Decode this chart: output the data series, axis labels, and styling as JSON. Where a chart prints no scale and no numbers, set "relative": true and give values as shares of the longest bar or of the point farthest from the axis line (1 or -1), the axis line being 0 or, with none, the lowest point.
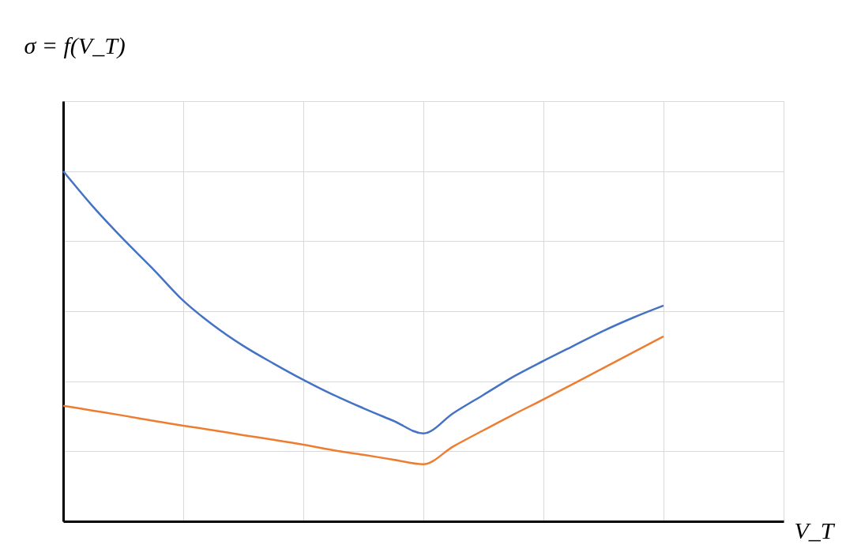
{
  "chart_data": {
    "type": "line",
    "relative": true,
    "xlabel": "V_T",
    "ylabel": "σ = f(V_T)",
    "grid": true,
    "categories": [
      null,
      null,
      null,
      null,
      null,
      null,
      null,
      null,
      null,
      null,
      null,
      null,
      null,
      null,
      null,
      null,
      null,
      null,
      null,
      null,
      null,
      null,
      null,
      null,
      null
    ],
    "series": [
      {
        "color": "#4472c4",
        "values": [
          1.0,
          0.898,
          0.806,
          0.72,
          0.63,
          0.56,
          0.501,
          0.451,
          0.404,
          0.361,
          0.323,
          0.287,
          0.251,
          0.309,
          0.361,
          0.413,
          0.458,
          0.501,
          0.544,
          0.582,
          0.616,
          null,
          null,
          null,
          null
        ]
      },
      {
        "color": "#ed7d31",
        "values": [
          0.33,
          0.316,
          0.302,
          0.287,
          0.273,
          0.26,
          0.246,
          0.233,
          0.219,
          0.203,
          0.19,
          0.176,
          0.163,
          0.214,
          0.26,
          0.305,
          0.348,
          0.393,
          0.438,
          0.483,
          0.528,
          null,
          null,
          null,
          null
        ]
      }
    ]
  }
}
